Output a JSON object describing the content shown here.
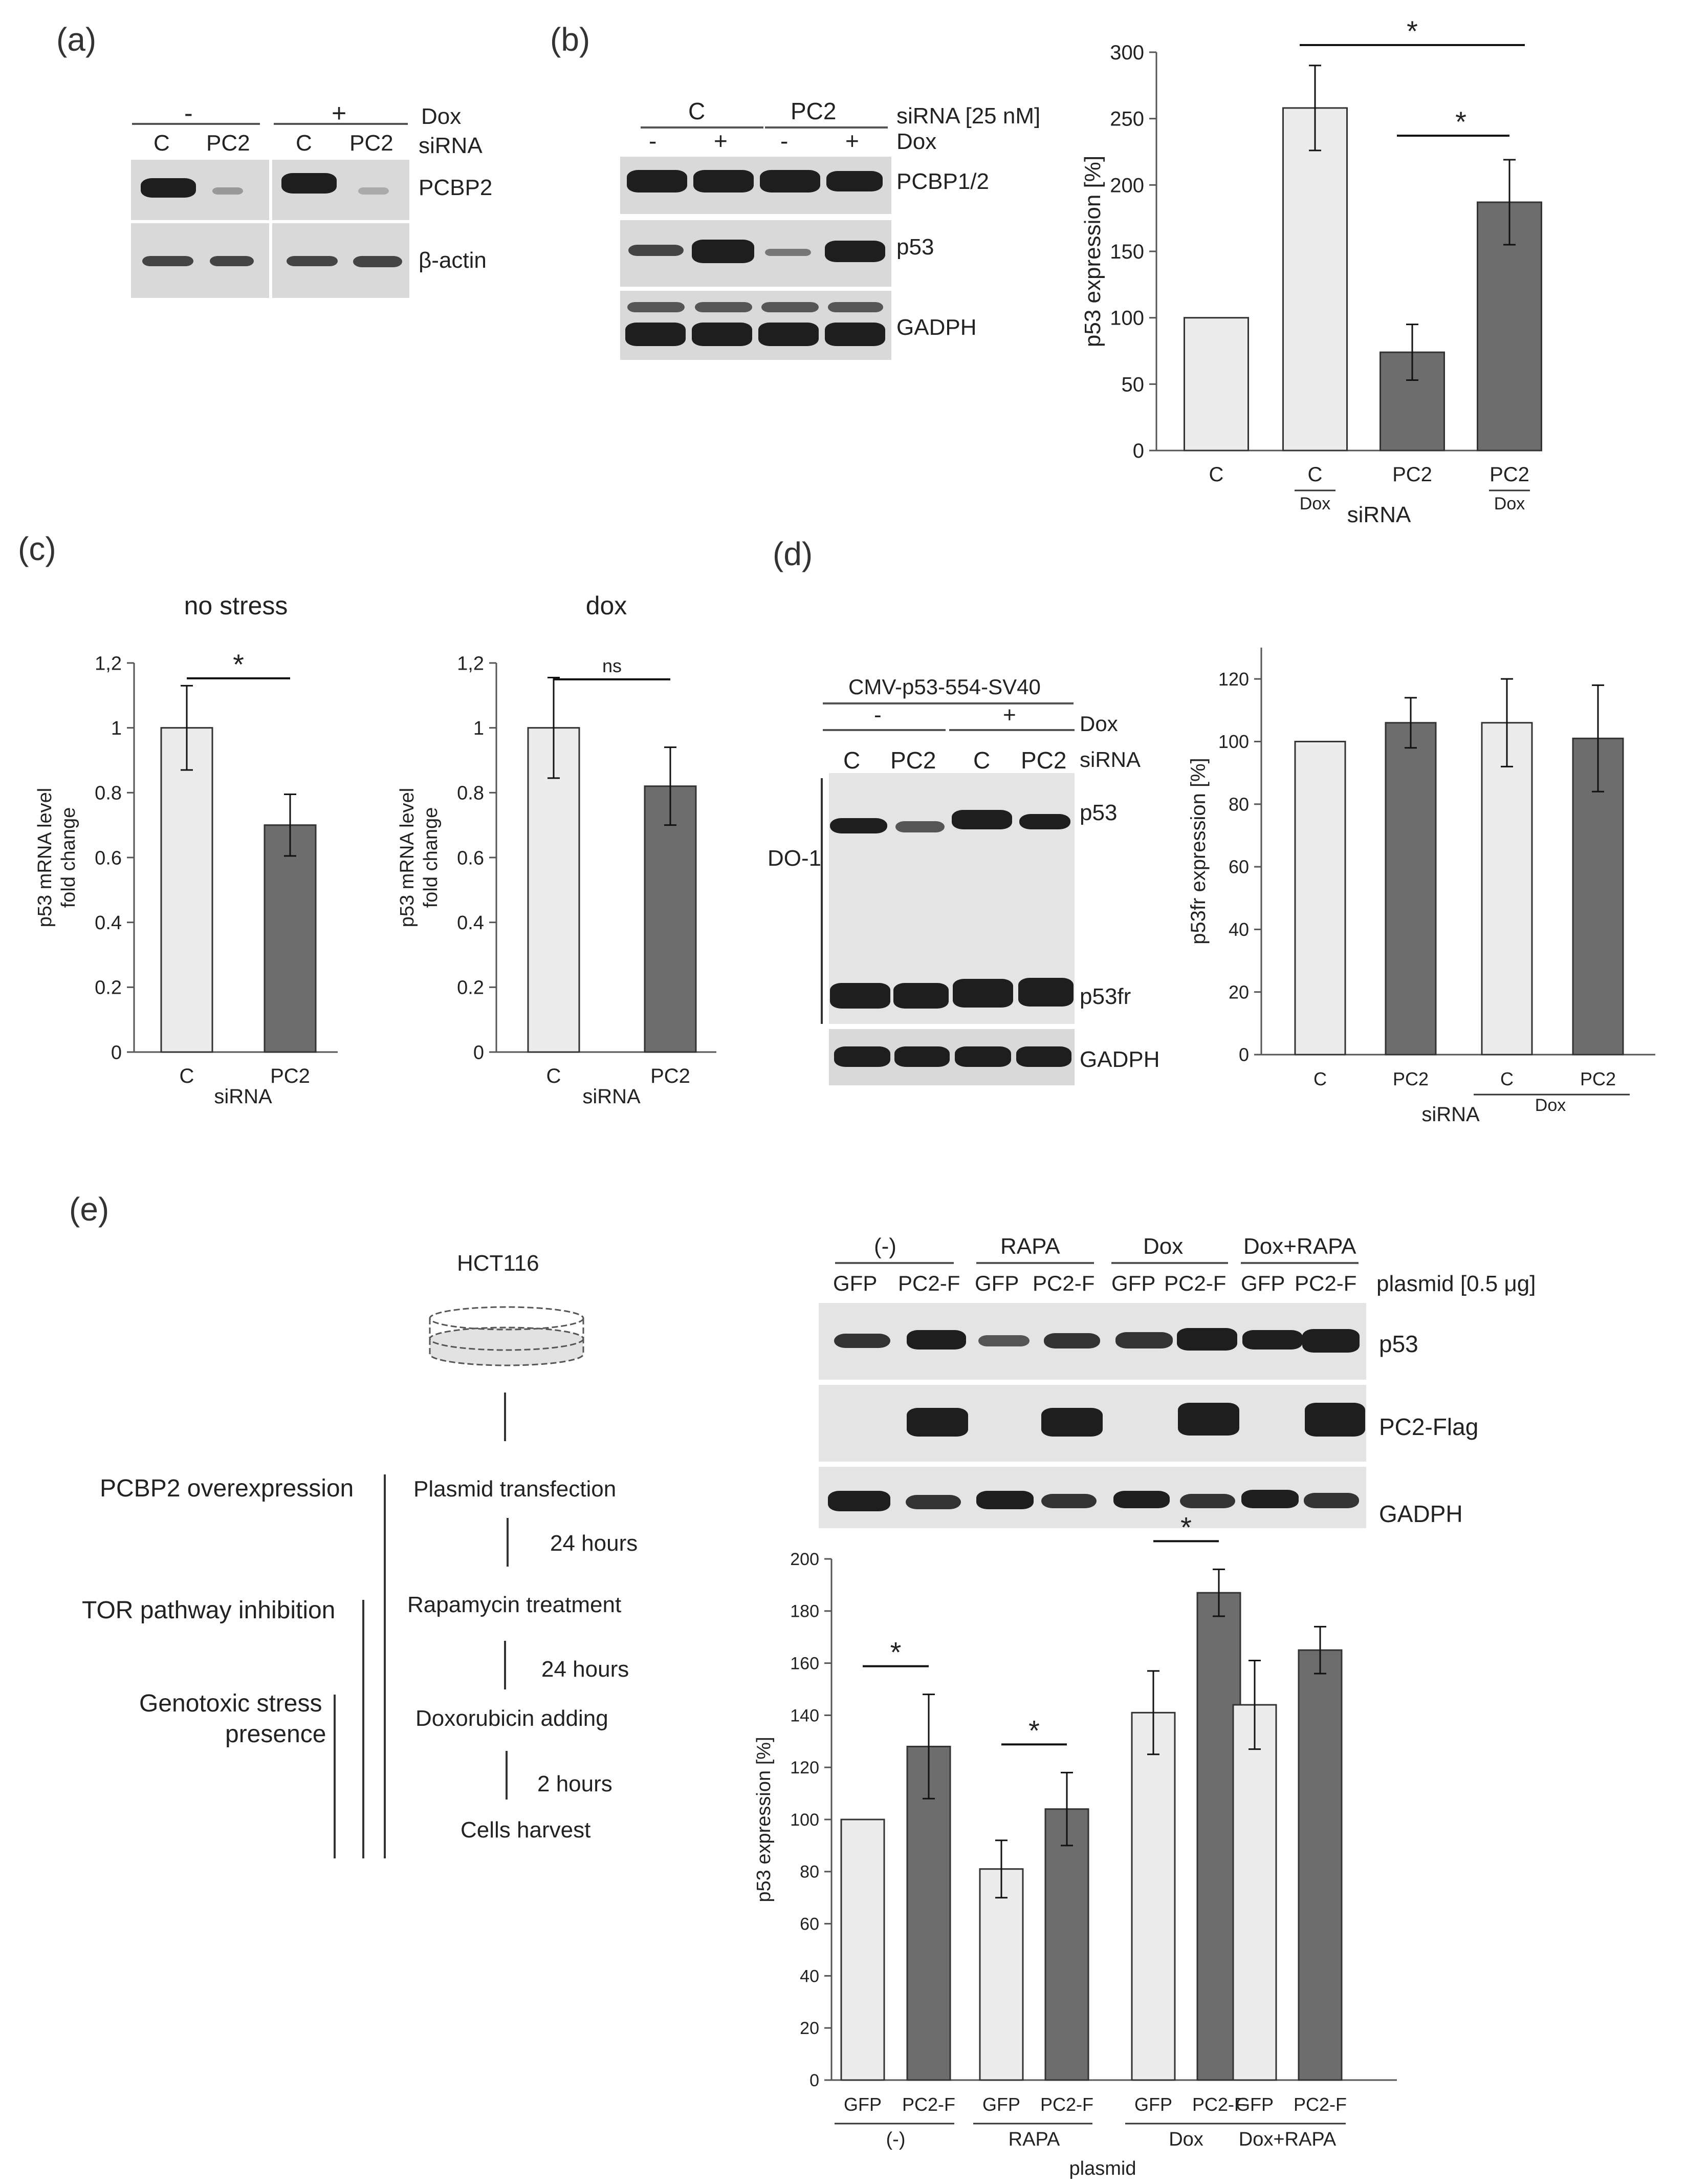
{
  "panels": {
    "a": "(a)",
    "b": "(b)",
    "c": "(c)",
    "d": "(d)",
    "e": "(e)"
  },
  "panel_a": {
    "dox_minus": "-",
    "dox_plus": "+",
    "dox": "Dox",
    "lanes": [
      "C",
      "PC2",
      "C",
      "PC2"
    ],
    "sirna": "siRNA",
    "blots": [
      "PCBP2",
      "β-actin"
    ]
  },
  "panel_b_blot": {
    "groups": [
      "C",
      "PC2"
    ],
    "sirna_conc": "siRNA [25 nM]",
    "dox_lanes": [
      "-",
      "+",
      "-",
      "+"
    ],
    "dox": "Dox",
    "blots": [
      "PCBP1/2",
      "p53",
      "GADPH"
    ]
  },
  "panel_d_blot": {
    "construct": "CMV-p53-554-SV40",
    "dox_minus": "-",
    "dox_plus": "+",
    "dox": "Dox",
    "lanes": [
      "C",
      "PC2",
      "C",
      "PC2"
    ],
    "sirna": "siRNA",
    "do1": "DO-1",
    "blots": [
      "p53",
      "p53fr",
      "GADPH"
    ]
  },
  "panel_e_scheme": {
    "cell_line": "HCT116",
    "left_labels": [
      "PCBP2 overexpression",
      "TOR pathway inhibition",
      "Genotoxic stress",
      "presence"
    ],
    "steps": [
      "Plasmid transfection",
      "Rapamycin treatment",
      "Doxorubicin adding",
      "Cells harvest"
    ],
    "times": [
      "24 hours",
      "24 hours",
      "2 hours"
    ]
  },
  "panel_e_blot": {
    "groups": [
      "(-)",
      "RAPA",
      "Dox",
      "Dox+RAPA"
    ],
    "lanes": [
      "GFP",
      "PC2-F",
      "GFP",
      "PC2-F",
      "GFP",
      "PC2-F",
      "GFP",
      "PC2-F"
    ],
    "plasmid": "plasmid [0.5 μg]",
    "blots": [
      "p53",
      "PC2-Flag",
      "GADPH"
    ]
  },
  "chart_data": [
    {
      "id": "b",
      "type": "bar",
      "ylabel": "p53 expression [%]",
      "xlabel": "siRNA",
      "ylim": [
        0,
        300
      ],
      "yticks": [
        0,
        50,
        100,
        150,
        200,
        250,
        300
      ],
      "categories": [
        "C",
        "C",
        "PC2",
        "PC2"
      ],
      "sublabels": [
        "",
        "Dox",
        "",
        "Dox"
      ],
      "values": [
        100,
        258,
        74,
        187
      ],
      "errors": [
        0,
        32,
        21,
        32
      ],
      "fills": [
        "#ececec",
        "#ececec",
        "#6d6d6d",
        "#6d6d6d"
      ],
      "significance": [
        {
          "from": 1,
          "to": 3,
          "label": "*"
        },
        {
          "from": 2,
          "to": 3,
          "label": "*"
        }
      ]
    },
    {
      "id": "c1",
      "type": "bar",
      "title": "no stress",
      "ylabel": "p53 mRNA level fold change",
      "xlabel": "siRNA",
      "ylim": [
        0,
        1.2
      ],
      "yticks": [
        "0",
        "0.2",
        "0.4",
        "0.6",
        "0.8",
        "1",
        "1,2"
      ],
      "categories": [
        "C",
        "PC2"
      ],
      "values": [
        1.0,
        0.7
      ],
      "errors": [
        0.13,
        0.095
      ],
      "fills": [
        "#ececec",
        "#6d6d6d"
      ],
      "significance": [
        {
          "from": 0,
          "to": 1,
          "label": "*"
        }
      ]
    },
    {
      "id": "c2",
      "type": "bar",
      "title": "dox",
      "ylabel": "p53 mRNA level fold change",
      "xlabel": "siRNA",
      "ylim": [
        0,
        1.2
      ],
      "yticks": [
        "0",
        "0.2",
        "0.4",
        "0.6",
        "0.8",
        "1",
        "1,2"
      ],
      "categories": [
        "C",
        "PC2"
      ],
      "values": [
        1.0,
        0.82
      ],
      "errors": [
        0.155,
        0.12
      ],
      "fills": [
        "#ececec",
        "#6d6d6d"
      ],
      "significance": [
        {
          "from": 0,
          "to": 1,
          "label": "ns"
        }
      ]
    },
    {
      "id": "d",
      "type": "bar",
      "ylabel": "p53fr expression [%]",
      "xlabel": "siRNA",
      "group_label": "Dox",
      "ylim": [
        0,
        130
      ],
      "yticks": [
        0,
        20,
        40,
        60,
        80,
        100,
        120
      ],
      "categories": [
        "C",
        "PC2",
        "C",
        "PC2"
      ],
      "values": [
        100,
        106,
        106,
        101
      ],
      "errors": [
        0,
        8,
        14,
        17
      ],
      "fills": [
        "#ececec",
        "#6d6d6d",
        "#ececec",
        "#6d6d6d"
      ]
    },
    {
      "id": "e",
      "type": "bar",
      "ylabel": "p53 expression [%]",
      "xlabel": "plasmid",
      "ylim": [
        0,
        200
      ],
      "yticks": [
        0,
        20,
        40,
        60,
        80,
        100,
        120,
        140,
        160,
        180,
        200
      ],
      "categories": [
        "GFP",
        "PC2-F",
        "GFP",
        "PC2-F",
        "GFP",
        "PC2-F",
        "GFP",
        "PC2-F"
      ],
      "groups": [
        "(-)",
        "RAPA",
        "Dox",
        "Dox+RAPA"
      ],
      "values": [
        100,
        128,
        81,
        104,
        141,
        187,
        144,
        165
      ],
      "errors": [
        0,
        20,
        11,
        14,
        16,
        9,
        17,
        9
      ],
      "fills": [
        "#ececec",
        "#6d6d6d",
        "#ececec",
        "#6d6d6d",
        "#ececec",
        "#6d6d6d",
        "#ececec",
        "#6d6d6d"
      ],
      "significance": [
        {
          "from": 0,
          "to": 1,
          "label": "*"
        },
        {
          "from": 2,
          "to": 3,
          "label": "*"
        },
        {
          "from": 4,
          "to": 5,
          "label": "*"
        }
      ]
    }
  ]
}
